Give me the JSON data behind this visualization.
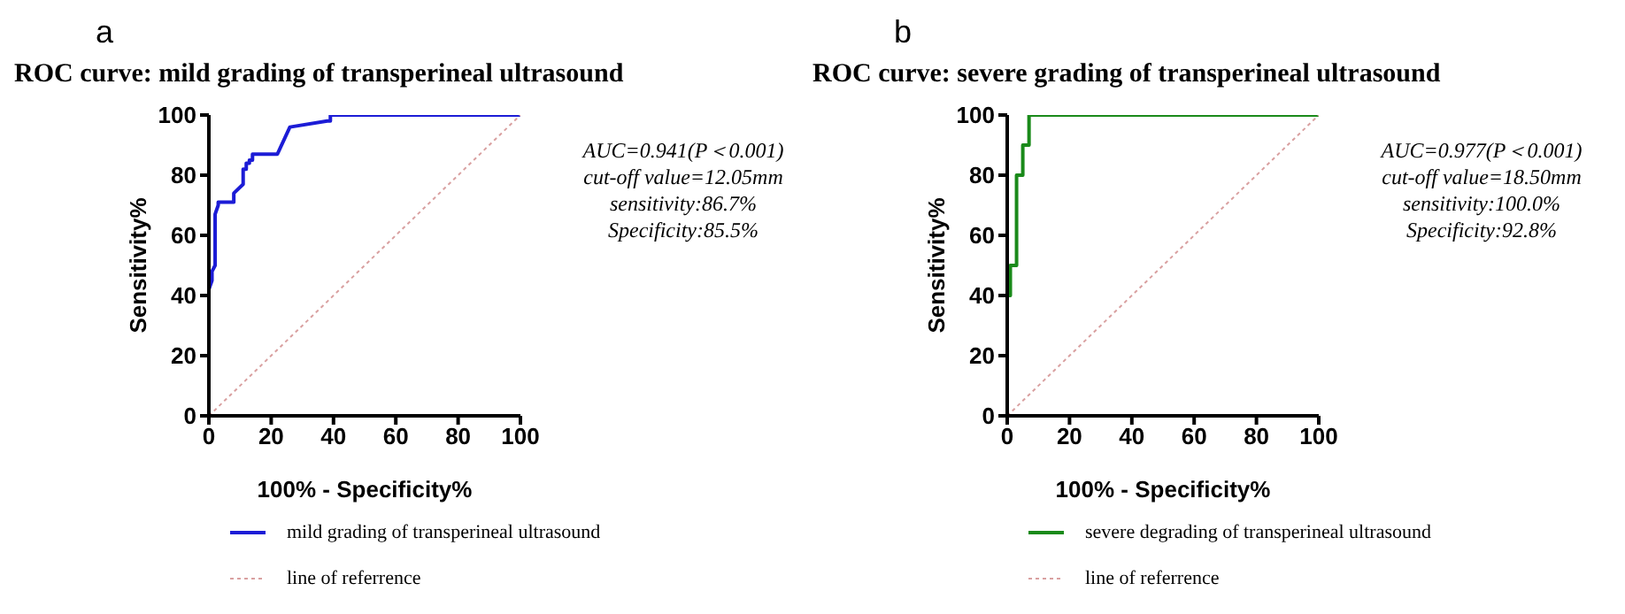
{
  "chart_data": [
    {
      "type": "line",
      "title": "ROC curve:  mild grading of transperineal ultrasound",
      "xlabel": "100% - Specificity%",
      "ylabel": "Sensitivity%",
      "xlim": [
        0,
        100
      ],
      "ylim": [
        0,
        100
      ],
      "xticks": [
        0,
        20,
        40,
        60,
        80,
        100
      ],
      "yticks": [
        0,
        20,
        40,
        60,
        80,
        100
      ],
      "grid": false,
      "legend": "bottom",
      "marker": "none",
      "annotations": [
        "a",
        "AUC=0.941(P＜0.001)",
        "cut-off value=12.05mm",
        "sensitivity:86.7%",
        "Specificity:85.5%"
      ],
      "series": [
        {
          "name": "mild grading of transperineal ultrasound",
          "color": "#1c1cd6",
          "line_style": "solid",
          "x": [
            0,
            0,
            1,
            1,
            2,
            2,
            3,
            3,
            8,
            8,
            11,
            11,
            12,
            12,
            13,
            13,
            14,
            14,
            22,
            26,
            38,
            39,
            39,
            100
          ],
          "values": [
            0,
            42,
            45,
            48,
            50,
            67,
            70,
            71,
            71,
            74,
            77,
            82,
            82,
            84,
            84,
            85,
            85,
            87,
            87,
            96,
            98,
            98,
            100,
            100
          ]
        },
        {
          "name": "line of referrence",
          "color": "#d9a0a0",
          "line_style": "dotted",
          "x": [
            0,
            100
          ],
          "values": [
            0,
            100
          ]
        }
      ]
    },
    {
      "type": "line",
      "title": "ROC curve: severe grading of transperineal ultrasound",
      "xlabel": "100% - Specificity%",
      "ylabel": "Sensitivity%",
      "xlim": [
        0,
        100
      ],
      "ylim": [
        0,
        100
      ],
      "xticks": [
        0,
        20,
        40,
        60,
        80,
        100
      ],
      "yticks": [
        0,
        20,
        40,
        60,
        80,
        100
      ],
      "grid": false,
      "legend": "bottom",
      "marker": "none",
      "annotations": [
        "b",
        "AUC=0.977(P＜0.001)",
        "cut-off value=18.50mm",
        "sensitivity:100.0%",
        "Specificity:92.8%"
      ],
      "series": [
        {
          "name": "severe degrading of transperineal ultrasound",
          "color": "#1a8a1a",
          "line_style": "solid",
          "x": [
            0,
            0,
            1,
            1,
            3,
            3,
            5,
            5,
            7,
            7,
            100
          ],
          "values": [
            0,
            40,
            40,
            50,
            50,
            80,
            80,
            90,
            90,
            100,
            100
          ]
        },
        {
          "name": "line of referrence",
          "color": "#d9a0a0",
          "line_style": "dotted",
          "x": [
            0,
            100
          ],
          "values": [
            0,
            100
          ]
        }
      ]
    }
  ]
}
